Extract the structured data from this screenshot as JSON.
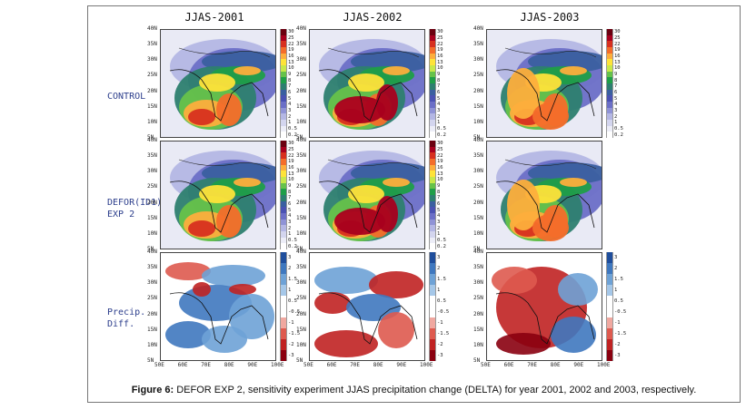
{
  "columns": [
    "JJAS-2001",
    "JJAS-2002",
    "JJAS-2003"
  ],
  "rows": [
    {
      "label_lines": [
        "CONTROL"
      ]
    },
    {
      "label_lines": [
        "DEFOR(ID1)",
        "EXP 2"
      ]
    },
    {
      "label_lines": [
        "Precip.",
        "Diff."
      ]
    }
  ],
  "lat_ticks": [
    "40N",
    "35N",
    "30N",
    "25N",
    "20N",
    "15N",
    "10N",
    "5N"
  ],
  "lon_ticks": [
    "50E",
    "60E",
    "70E",
    "80E",
    "90E",
    "100E"
  ],
  "precip_scale": [
    "30",
    "25",
    "22",
    "19",
    "16",
    "13",
    "10",
    "9",
    "8",
    "7",
    "6",
    "5",
    "4",
    "3",
    "2",
    "1",
    "0.5",
    "0.2"
  ],
  "precip_colors": [
    "#6b0010",
    "#a8001e",
    "#d7301f",
    "#f46d2a",
    "#fdae3c",
    "#fee339",
    "#c8e84a",
    "#66c24a",
    "#1f9e48",
    "#2d7f6f",
    "#3a5fa0",
    "#4a52b3",
    "#6b6fc7",
    "#8f93d6",
    "#b4b7e4",
    "#d3d5ee",
    "#ecedf7",
    "#ffffff"
  ],
  "diff_scale": [
    "3",
    "2",
    "1.5",
    "1",
    "0.5",
    "-0.5",
    "-1",
    "-1.5",
    "-2",
    "-3"
  ],
  "diff_colors": [
    "#1f4e9c",
    "#3f78bf",
    "#6ea2d6",
    "#a5c7e8",
    "#ffffff",
    "#ffffff",
    "#f0a8a0",
    "#de5a4f",
    "#c02222",
    "#8a0010"
  ],
  "caption": {
    "label": "Figure 6:",
    "text": " DEFOR EXP 2, sensitivity experiment JJAS precipitation change (DELTA) for year 2001, 2002 and 2003, respectively."
  }
}
